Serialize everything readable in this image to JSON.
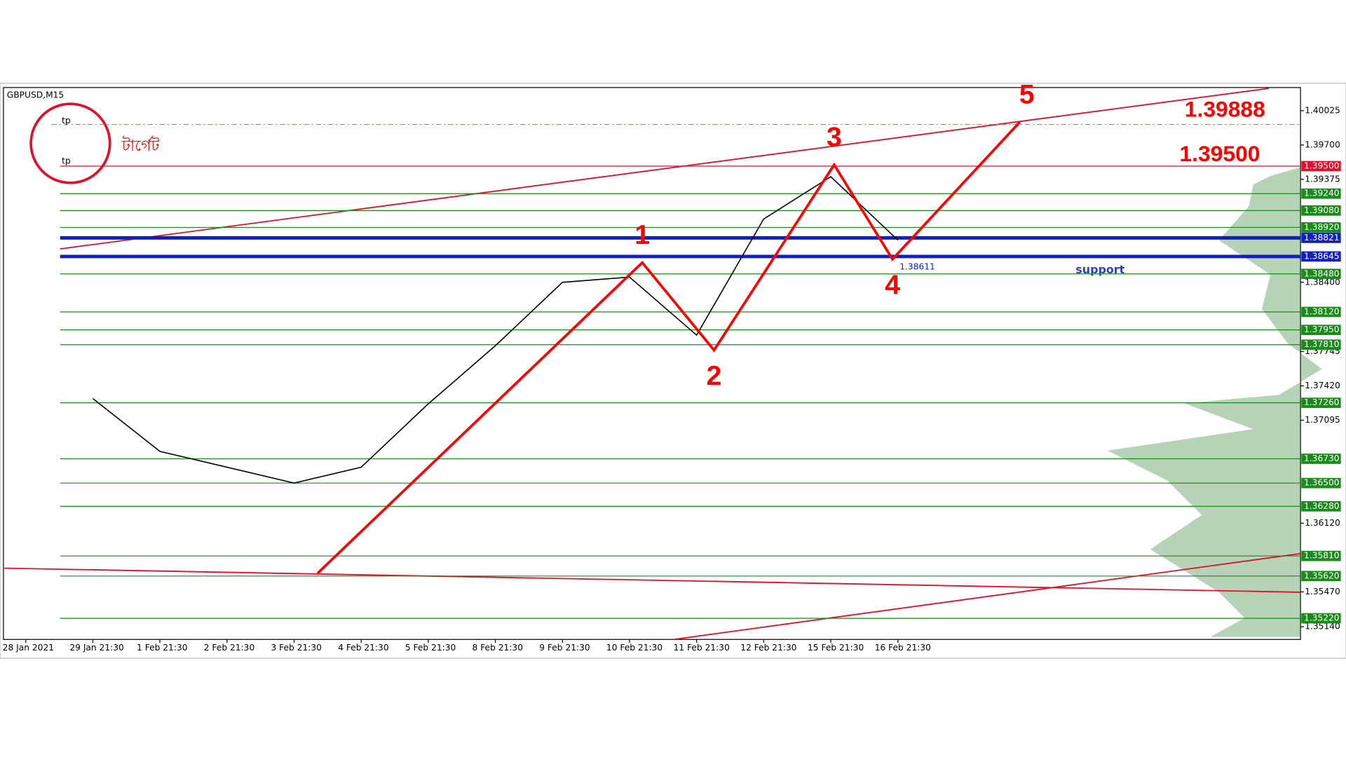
{
  "chart_data": {
    "type": "line",
    "title": "GBPUSD,M15",
    "categories": [
      "28 Jan 2021",
      "29 Jan 21:30",
      "1 Feb 21:30",
      "2 Feb 21:30",
      "3 Feb 21:30",
      "4 Feb 21:30",
      "5 Feb 21:30",
      "8 Feb 21:30",
      "9 Feb 21:30",
      "10 Feb 21:30",
      "11 Feb 21:30",
      "12 Feb 21:30",
      "15 Feb 21:30",
      "16 Feb 21:30"
    ],
    "series": [
      {
        "name": "GBPUSD",
        "color": "#000000",
        "values": [
          null,
          1.373,
          1.368,
          1.3665,
          1.365,
          1.3665,
          1.3725,
          1.378,
          1.384,
          1.3845,
          1.379,
          1.39,
          1.394,
          1.388
        ]
      }
    ],
    "ylim": [
      1.3502,
      1.40244
    ],
    "yticks": [
      {
        "value": 1.40025,
        "label": "1.40025"
      },
      {
        "value": 1.397,
        "label": "1.39700"
      },
      {
        "value": 1.39375,
        "label": "1.39375"
      },
      {
        "value": 1.384,
        "label": "1.38400"
      },
      {
        "value": 1.37745,
        "label": "1.37745"
      },
      {
        "value": 1.3742,
        "label": "1.37420"
      },
      {
        "value": 1.37095,
        "label": "1.37095"
      },
      {
        "value": 1.3612,
        "label": "1.36120"
      },
      {
        "value": 1.3547,
        "label": "1.35470"
      },
      {
        "value": 1.3514,
        "label": "1.35140"
      }
    ],
    "levels": [
      {
        "value": 1.395,
        "label": "1.39500",
        "color": "#e0102a"
      },
      {
        "value": 1.3924,
        "label": "1.39240",
        "color": "#1a8a1a"
      },
      {
        "value": 1.3908,
        "label": "1.39080",
        "color": "#1a8a1a"
      },
      {
        "value": 1.3892,
        "label": "1.38920",
        "color": "#1a8a1a"
      },
      {
        "value": 1.38821,
        "label": "1.38821",
        "color": "#1020c0"
      },
      {
        "value": 1.38645,
        "label": "1.38645",
        "color": "#1020c0"
      },
      {
        "value": 1.3848,
        "label": "1.38480",
        "color": "#1a8a1a"
      },
      {
        "value": 1.3812,
        "label": "1.38120",
        "color": "#1a8a1a"
      },
      {
        "value": 1.3795,
        "label": "1.37950",
        "color": "#1a8a1a"
      },
      {
        "value": 1.3781,
        "label": "1.37810",
        "color": "#1a8a1a"
      },
      {
        "value": 1.3726,
        "label": "1.37260",
        "color": "#1a8a1a"
      },
      {
        "value": 1.3673,
        "label": "1.36730",
        "color": "#1a8a1a"
      },
      {
        "value": 1.365,
        "label": "1.36500",
        "color": "#1a8a1a"
      },
      {
        "value": 1.3628,
        "label": "1.36280",
        "color": "#1a8a1a"
      },
      {
        "value": 1.3581,
        "label": "1.35810",
        "color": "#1a8a1a"
      },
      {
        "value": 1.3562,
        "label": "1.35620",
        "color": "#1a8a1a"
      },
      {
        "value": 1.3522,
        "label": "1.35220",
        "color": "#1a8a1a"
      }
    ],
    "wave": [
      {
        "label": null,
        "x": 4.35,
        "value": 1.35646
      },
      {
        "label": "1",
        "x": 9.19,
        "value": 1.38587
      },
      {
        "label": "2",
        "x": 10.26,
        "value": 1.37758
      },
      {
        "label": "3",
        "x": 12.05,
        "value": 1.39513
      },
      {
        "label": "4",
        "x": 12.92,
        "value": 1.38619
      },
      {
        "label": "5",
        "x": 14.82,
        "value": 1.39919
      }
    ],
    "annotations": {
      "target_high": "1.39888",
      "target_low": "1.39500",
      "tp1": "tp",
      "tp2": "tp",
      "target_text": "টার্গেট",
      "support": "support",
      "low_price": "1.38611"
    }
  }
}
